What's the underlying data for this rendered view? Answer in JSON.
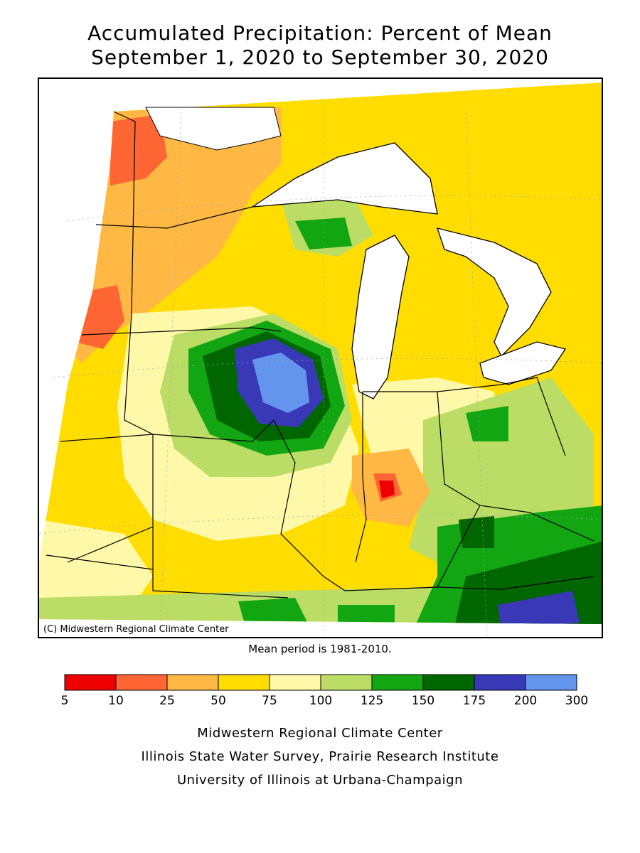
{
  "title": {
    "line1": "Accumulated Precipitation: Percent of Mean",
    "line2": "September 1, 2020 to September 30, 2020"
  },
  "map": {
    "copyright": "(C) Midwestern Regional Climate Center",
    "mean_note": "Mean period is 1981-2010."
  },
  "legend": {
    "ticks": [
      "5",
      "10",
      "25",
      "50",
      "75",
      "100",
      "125",
      "150",
      "175",
      "200",
      "300"
    ],
    "colors": [
      "#ee0000",
      "#ff6633",
      "#ffb844",
      "#ffdd00",
      "#fff8a8",
      "#bbdd66",
      "#12a612",
      "#006600",
      "#3939b8",
      "#6495ed"
    ]
  },
  "credits": {
    "line1": "Midwestern Regional Climate Center",
    "line2": "Illinois State Water Survey, Prairie Research Institute",
    "line3": "University of Illinois at Urbana-Champaign"
  }
}
